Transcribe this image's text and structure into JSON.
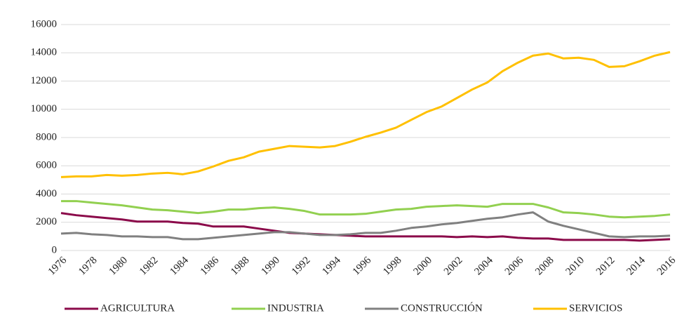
{
  "chart_data": {
    "type": "line",
    "x": [
      1976,
      1977,
      1978,
      1979,
      1980,
      1981,
      1982,
      1983,
      1984,
      1985,
      1986,
      1987,
      1988,
      1989,
      1990,
      1991,
      1992,
      1993,
      1994,
      1995,
      1996,
      1997,
      1998,
      1999,
      2000,
      2001,
      2002,
      2003,
      2004,
      2005,
      2006,
      2007,
      2008,
      2009,
      2010,
      2011,
      2012,
      2013,
      2014,
      2015,
      2016
    ],
    "xlim": [
      1976,
      2016
    ],
    "xticks": [
      1976,
      1978,
      1980,
      1982,
      1984,
      1986,
      1988,
      1990,
      1992,
      1994,
      1996,
      1998,
      2000,
      2002,
      2004,
      2006,
      2008,
      2010,
      2012,
      2014,
      2016
    ],
    "ylim": [
      0,
      16000
    ],
    "yticks": [
      0,
      2000,
      4000,
      6000,
      8000,
      10000,
      12000,
      14000,
      16000
    ],
    "grid": true,
    "legend": "bottom",
    "series": [
      {
        "name": "AGRICULTURA",
        "color": "#8b0a4a",
        "values": [
          2650,
          2500,
          2400,
          2300,
          2200,
          2050,
          2050,
          2050,
          1950,
          1900,
          1700,
          1700,
          1700,
          1550,
          1400,
          1250,
          1200,
          1150,
          1100,
          1050,
          1000,
          1000,
          1000,
          1000,
          1000,
          1000,
          950,
          1000,
          950,
          1000,
          900,
          850,
          850,
          750,
          750,
          750,
          750,
          750,
          700,
          750,
          800
        ]
      },
      {
        "name": "INDUSTRIA",
        "color": "#92d050",
        "values": [
          3500,
          3500,
          3400,
          3300,
          3200,
          3050,
          2900,
          2850,
          2750,
          2650,
          2750,
          2900,
          2900,
          3000,
          3050,
          2950,
          2800,
          2550,
          2550,
          2550,
          2600,
          2750,
          2900,
          2950,
          3100,
          3150,
          3200,
          3150,
          3100,
          3300,
          3300,
          3300,
          3050,
          2700,
          2650,
          2550,
          2400,
          2350,
          2400,
          2450,
          2550
        ]
      },
      {
        "name": "CONSTRUCCIÓN",
        "color": "#808080",
        "values": [
          1200,
          1250,
          1150,
          1100,
          1000,
          1000,
          950,
          950,
          800,
          800,
          900,
          1000,
          1100,
          1200,
          1300,
          1300,
          1200,
          1100,
          1100,
          1150,
          1250,
          1250,
          1400,
          1600,
          1700,
          1850,
          1950,
          2100,
          2250,
          2350,
          2550,
          2700,
          2050,
          1750,
          1500,
          1250,
          1000,
          950,
          1000,
          1000,
          1050
        ]
      },
      {
        "name": "SERVICIOS",
        "color": "#ffc000",
        "values": [
          5200,
          5250,
          5250,
          5350,
          5300,
          5350,
          5450,
          5500,
          5400,
          5600,
          5950,
          6350,
          6600,
          7000,
          7200,
          7400,
          7350,
          7300,
          7400,
          7700,
          8050,
          8350,
          8700,
          9250,
          9800,
          10200,
          10800,
          11400,
          11900,
          12700,
          13300,
          13800,
          13950,
          13600,
          13650,
          13500,
          13000,
          13050,
          13400,
          13800,
          14050
        ]
      }
    ]
  }
}
